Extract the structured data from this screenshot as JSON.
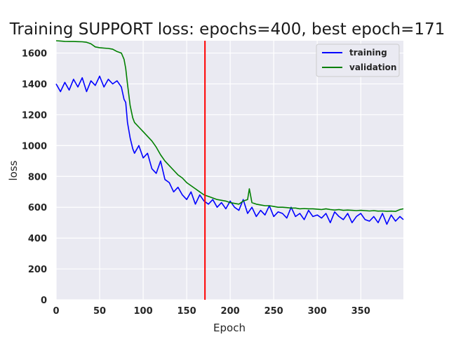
{
  "chart_data": {
    "type": "line",
    "title": "Training SUPPORT loss: epochs=400, best epoch=171",
    "xlabel": "Epoch",
    "ylabel": "loss",
    "xlim": [
      0,
      399
    ],
    "ylim": [
      0,
      1680
    ],
    "xticks": [
      0,
      50,
      100,
      150,
      200,
      250,
      300,
      350
    ],
    "yticks": [
      0,
      200,
      400,
      600,
      800,
      1000,
      1200,
      1400,
      1600
    ],
    "grid": true,
    "legend_position": "top-right",
    "background_color": "#eaeaf2",
    "grid_color": "#ffffff",
    "best_epoch": 171,
    "best_epoch_color": "#ff0000",
    "series": [
      {
        "name": "training",
        "color": "#0000ff",
        "x": [
          0,
          5,
          10,
          15,
          20,
          25,
          30,
          35,
          40,
          45,
          50,
          55,
          60,
          65,
          70,
          75,
          78,
          80,
          82,
          85,
          88,
          90,
          95,
          100,
          105,
          110,
          115,
          120,
          125,
          130,
          135,
          140,
          145,
          150,
          155,
          160,
          165,
          170,
          175,
          180,
          185,
          190,
          195,
          200,
          205,
          210,
          215,
          220,
          225,
          230,
          235,
          240,
          245,
          250,
          255,
          260,
          265,
          270,
          275,
          280,
          285,
          290,
          295,
          300,
          305,
          310,
          315,
          320,
          325,
          330,
          335,
          340,
          345,
          350,
          355,
          360,
          365,
          370,
          375,
          380,
          385,
          390,
          395,
          399
        ],
        "y": [
          1400,
          1350,
          1410,
          1360,
          1430,
          1380,
          1440,
          1350,
          1420,
          1390,
          1450,
          1380,
          1430,
          1400,
          1420,
          1380,
          1300,
          1280,
          1150,
          1050,
          980,
          950,
          1000,
          920,
          950,
          850,
          820,
          900,
          780,
          760,
          700,
          730,
          680,
          650,
          700,
          620,
          680,
          640,
          620,
          650,
          600,
          630,
          590,
          640,
          600,
          580,
          650,
          560,
          600,
          540,
          580,
          550,
          610,
          540,
          570,
          560,
          530,
          600,
          540,
          560,
          520,
          580,
          540,
          550,
          530,
          560,
          500,
          570,
          540,
          520,
          560,
          500,
          540,
          560,
          520,
          510,
          540,
          500,
          560,
          490,
          550,
          510,
          540,
          520
        ]
      },
      {
        "name": "validation",
        "color": "#008000",
        "x": [
          0,
          5,
          10,
          15,
          20,
          25,
          30,
          35,
          40,
          45,
          50,
          55,
          60,
          65,
          70,
          75,
          78,
          80,
          82,
          85,
          88,
          90,
          95,
          100,
          105,
          110,
          115,
          120,
          125,
          130,
          135,
          140,
          145,
          150,
          155,
          160,
          165,
          170,
          175,
          180,
          185,
          190,
          195,
          200,
          205,
          210,
          215,
          220,
          222,
          225,
          230,
          235,
          240,
          245,
          250,
          255,
          260,
          265,
          270,
          275,
          280,
          285,
          290,
          295,
          300,
          305,
          310,
          315,
          320,
          325,
          330,
          335,
          340,
          345,
          350,
          355,
          360,
          365,
          370,
          375,
          380,
          385,
          390,
          395,
          399
        ],
        "y": [
          1680,
          1678,
          1676,
          1675,
          1675,
          1674,
          1673,
          1670,
          1660,
          1640,
          1635,
          1632,
          1630,
          1625,
          1610,
          1600,
          1560,
          1500,
          1400,
          1260,
          1180,
          1150,
          1120,
          1090,
          1060,
          1030,
          990,
          940,
          900,
          870,
          840,
          810,
          790,
          760,
          740,
          720,
          700,
          680,
          670,
          660,
          650,
          645,
          640,
          630,
          625,
          620,
          640,
          650,
          720,
          630,
          620,
          615,
          610,
          610,
          605,
          600,
          600,
          598,
          595,
          595,
          590,
          592,
          590,
          590,
          588,
          585,
          590,
          585,
          582,
          585,
          580,
          582,
          580,
          578,
          580,
          578,
          576,
          578,
          575,
          576,
          574,
          575,
          573,
          585,
          590
        ]
      }
    ]
  }
}
